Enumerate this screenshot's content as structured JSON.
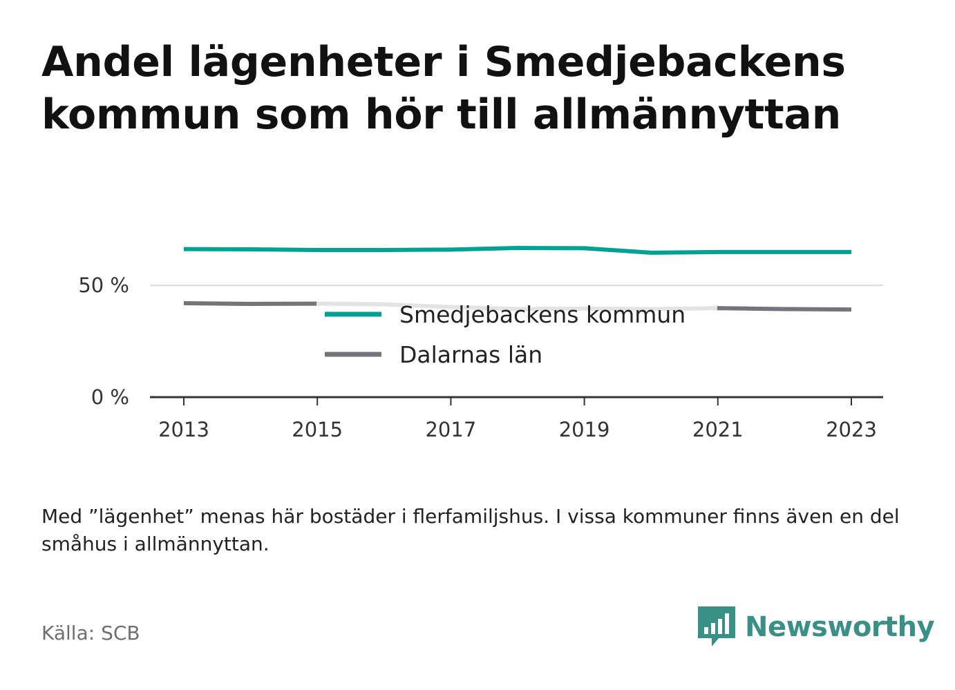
{
  "title": "Andel lägenheter i Smedjebackens kommun som hör till allmännyttan",
  "note": "Med ”lägenhet” menas här bostäder i flerfamiljshus. I vissa kommuner finns även en del småhus i allmännyttan.",
  "source": "Källa: SCB",
  "brand": {
    "name": "Newsworthy",
    "logo_icon": "bar-chart-speech-bubble-icon"
  },
  "colors": {
    "primary": "#00a294",
    "secondary": "#75747b",
    "brand": "#3a8f86"
  },
  "chart_data": {
    "type": "line",
    "x": [
      2013,
      2014,
      2015,
      2016,
      2017,
      2018,
      2019,
      2020,
      2021,
      2022,
      2023
    ],
    "xticks": [
      "2013",
      "2015",
      "2017",
      "2019",
      "2021",
      "2023"
    ],
    "yticks": [
      "0 %",
      "50 %"
    ],
    "ylim": [
      0,
      80
    ],
    "grid": true,
    "legend_position": "center",
    "series": [
      {
        "name": "Smedjebackens kommun",
        "color": "#00a294",
        "values": [
          66.2,
          66.1,
          65.8,
          65.8,
          66.0,
          66.7,
          66.6,
          64.6,
          64.9,
          64.9,
          64.9
        ]
      },
      {
        "name": "Dalarnas län",
        "color": "#75747b",
        "values": [
          42.0,
          41.7,
          41.8,
          41.5,
          40.3,
          39.4,
          39.6,
          39.4,
          39.8,
          39.4,
          39.2
        ]
      }
    ]
  }
}
